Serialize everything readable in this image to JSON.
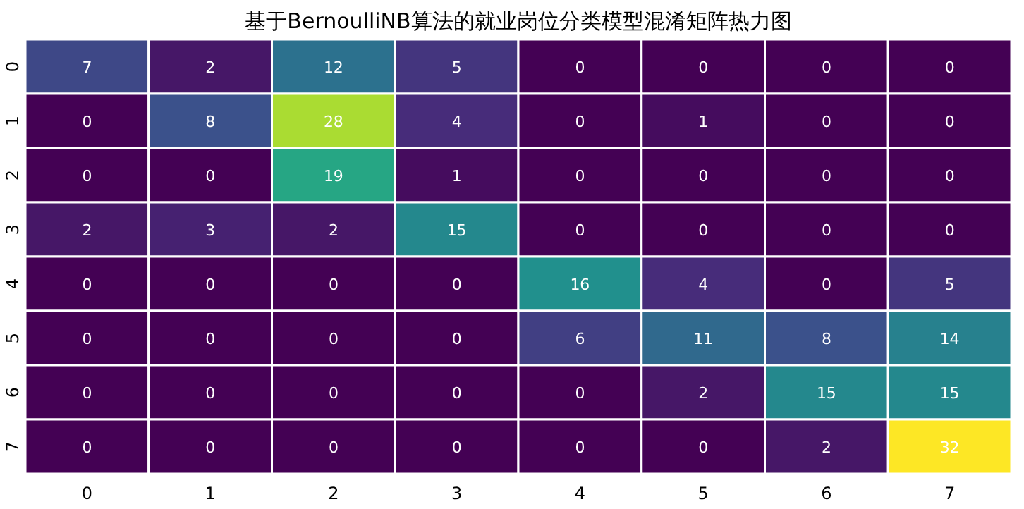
{
  "chart_data": {
    "type": "heatmap",
    "title": "基于BernoulliNB算法的就业岗位分类模型混淆矩阵热力图",
    "categories": [
      "0",
      "1",
      "2",
      "3",
      "4",
      "5",
      "6",
      "7"
    ],
    "y_categories": [
      "0",
      "1",
      "2",
      "3",
      "4",
      "5",
      "6",
      "7"
    ],
    "cells": [
      [
        7,
        2,
        12,
        5,
        0,
        0,
        0,
        0
      ],
      [
        0,
        8,
        28,
        4,
        0,
        1,
        0,
        0
      ],
      [
        0,
        0,
        19,
        1,
        0,
        0,
        0,
        0
      ],
      [
        2,
        3,
        2,
        15,
        0,
        0,
        0,
        0
      ],
      [
        0,
        0,
        0,
        0,
        16,
        4,
        0,
        5
      ],
      [
        0,
        0,
        0,
        0,
        6,
        11,
        8,
        14
      ],
      [
        0,
        0,
        0,
        0,
        0,
        2,
        15,
        15
      ],
      [
        0,
        0,
        0,
        0,
        0,
        0,
        2,
        32
      ]
    ],
    "data_labels": true
  }
}
